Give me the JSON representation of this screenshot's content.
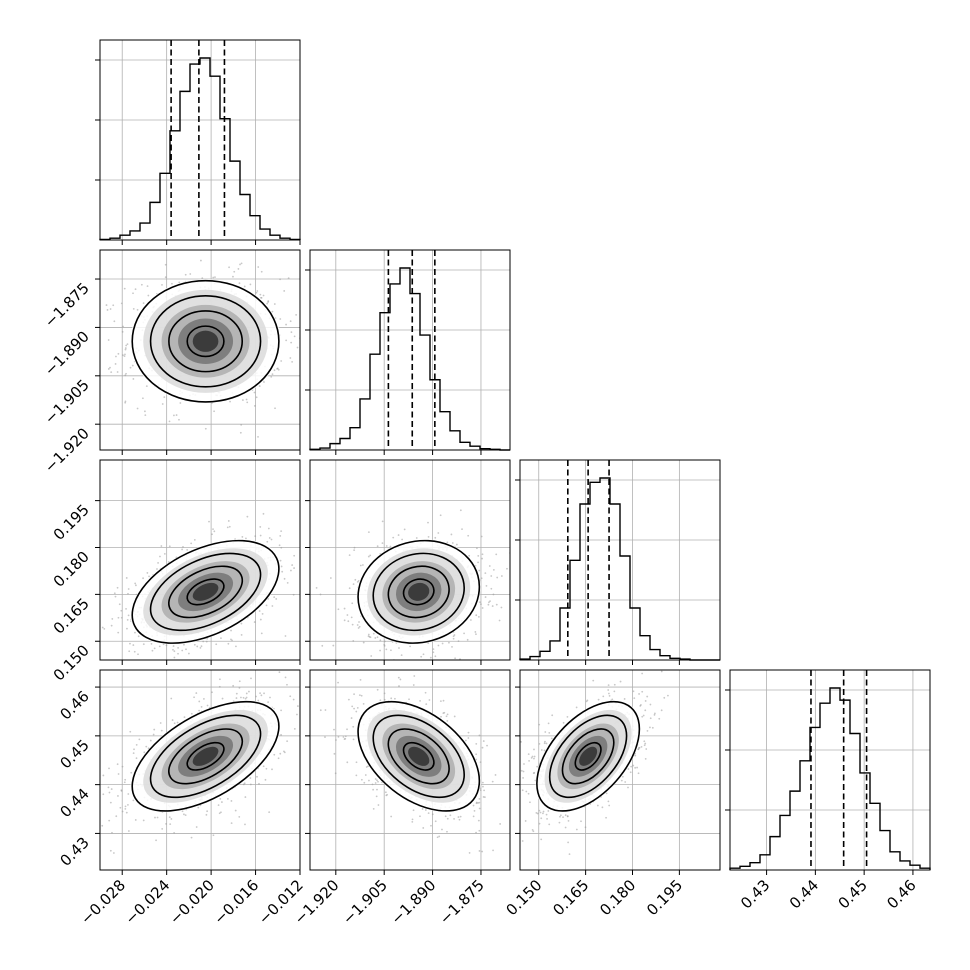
{
  "chart_data": {
    "type": "corner",
    "parameters": 4,
    "axes": [
      {
        "id": "p0",
        "range": [
          -0.03,
          -0.012
        ],
        "ticks": [
          -0.028,
          -0.024,
          -0.02,
          -0.016,
          -0.012
        ],
        "tick_labels": [
          "−0.028",
          "−0.024",
          "−0.020",
          "−0.016",
          "−0.012"
        ]
      },
      {
        "id": "p1",
        "range": [
          -1.928,
          -1.866
        ],
        "ticks": [
          -1.92,
          -1.905,
          -1.89,
          -1.875
        ],
        "tick_labels": [
          "−1.920",
          "−1.905",
          "−1.890",
          "−1.875"
        ]
      },
      {
        "id": "p2",
        "range": [
          0.144,
          0.208
        ],
        "ticks": [
          0.15,
          0.165,
          0.18,
          0.195
        ],
        "tick_labels": [
          "0.150",
          "0.165",
          "0.180",
          "0.195"
        ]
      },
      {
        "id": "p3",
        "range": [
          0.4225,
          0.4635
        ],
        "ticks": [
          0.43,
          0.44,
          0.45,
          0.46
        ],
        "tick_labels": [
          "0.43",
          "0.44",
          "0.45",
          "0.46"
        ]
      }
    ],
    "marginals": [
      {
        "param": 0,
        "bin_edges_range": [
          -0.03,
          -0.012
        ],
        "counts": [
          1,
          3,
          8,
          15,
          28,
          62,
          110,
          180,
          245,
          290,
          300,
          270,
          200,
          130,
          75,
          40,
          18,
          8,
          3,
          1
        ],
        "peak": 300,
        "quantiles": [
          -0.0236,
          -0.0211,
          -0.0188
        ]
      },
      {
        "param": 1,
        "bin_edges_range": [
          -1.928,
          -1.866
        ],
        "counts": [
          1,
          3,
          10,
          18,
          35,
          80,
          150,
          215,
          260,
          285,
          245,
          180,
          110,
          60,
          30,
          12,
          6,
          2,
          1,
          0
        ],
        "peak": 285,
        "quantiles": [
          -1.9037,
          -1.8963,
          -1.8893
        ]
      },
      {
        "param": 2,
        "bin_edges_range": [
          0.144,
          0.208
        ],
        "counts": [
          1,
          4,
          10,
          22,
          60,
          115,
          180,
          205,
          210,
          180,
          120,
          60,
          28,
          12,
          5,
          2,
          1,
          0,
          0,
          0
        ],
        "peak": 210,
        "quantiles": [
          0.1593,
          0.1658,
          0.1725
        ]
      },
      {
        "param": 3,
        "bin_edges_range": [
          0.4225,
          0.4635
        ],
        "counts": [
          3,
          6,
          12,
          25,
          55,
          90,
          130,
          180,
          235,
          275,
          300,
          280,
          225,
          160,
          110,
          65,
          30,
          15,
          8,
          3
        ],
        "peak": 300,
        "quantiles": [
          0.4391,
          0.4458,
          0.4505
        ]
      }
    ],
    "pairs": [
      {
        "x": 0,
        "y": 1,
        "mean": [
          -0.0205,
          -1.8943
        ],
        "sd": [
          0.0033,
          0.0094
        ],
        "rho": 0.0
      },
      {
        "x": 0,
        "y": 2,
        "mean": [
          -0.0205,
          0.1658
        ],
        "sd": [
          0.0033,
          0.0082
        ],
        "rho": 0.45
      },
      {
        "x": 1,
        "y": 2,
        "mean": [
          -1.8943,
          0.1658
        ],
        "sd": [
          0.0094,
          0.0082
        ],
        "rho": 0.1
      },
      {
        "x": 0,
        "y": 3,
        "mean": [
          -0.0205,
          0.4458
        ],
        "sd": [
          0.0033,
          0.0056
        ],
        "rho": 0.55
      },
      {
        "x": 1,
        "y": 3,
        "mean": [
          -1.8943,
          0.4458
        ],
        "sd": [
          0.0094,
          0.0056
        ],
        "rho": -0.45
      },
      {
        "x": 2,
        "y": 3,
        "mean": [
          0.1658,
          0.4458
        ],
        "sd": [
          0.0082,
          0.0056
        ],
        "rho": 0.5
      }
    ],
    "contour_levels_sigma": [
      0.5,
      1.0,
      1.5,
      2.0
    ],
    "grid": true
  }
}
